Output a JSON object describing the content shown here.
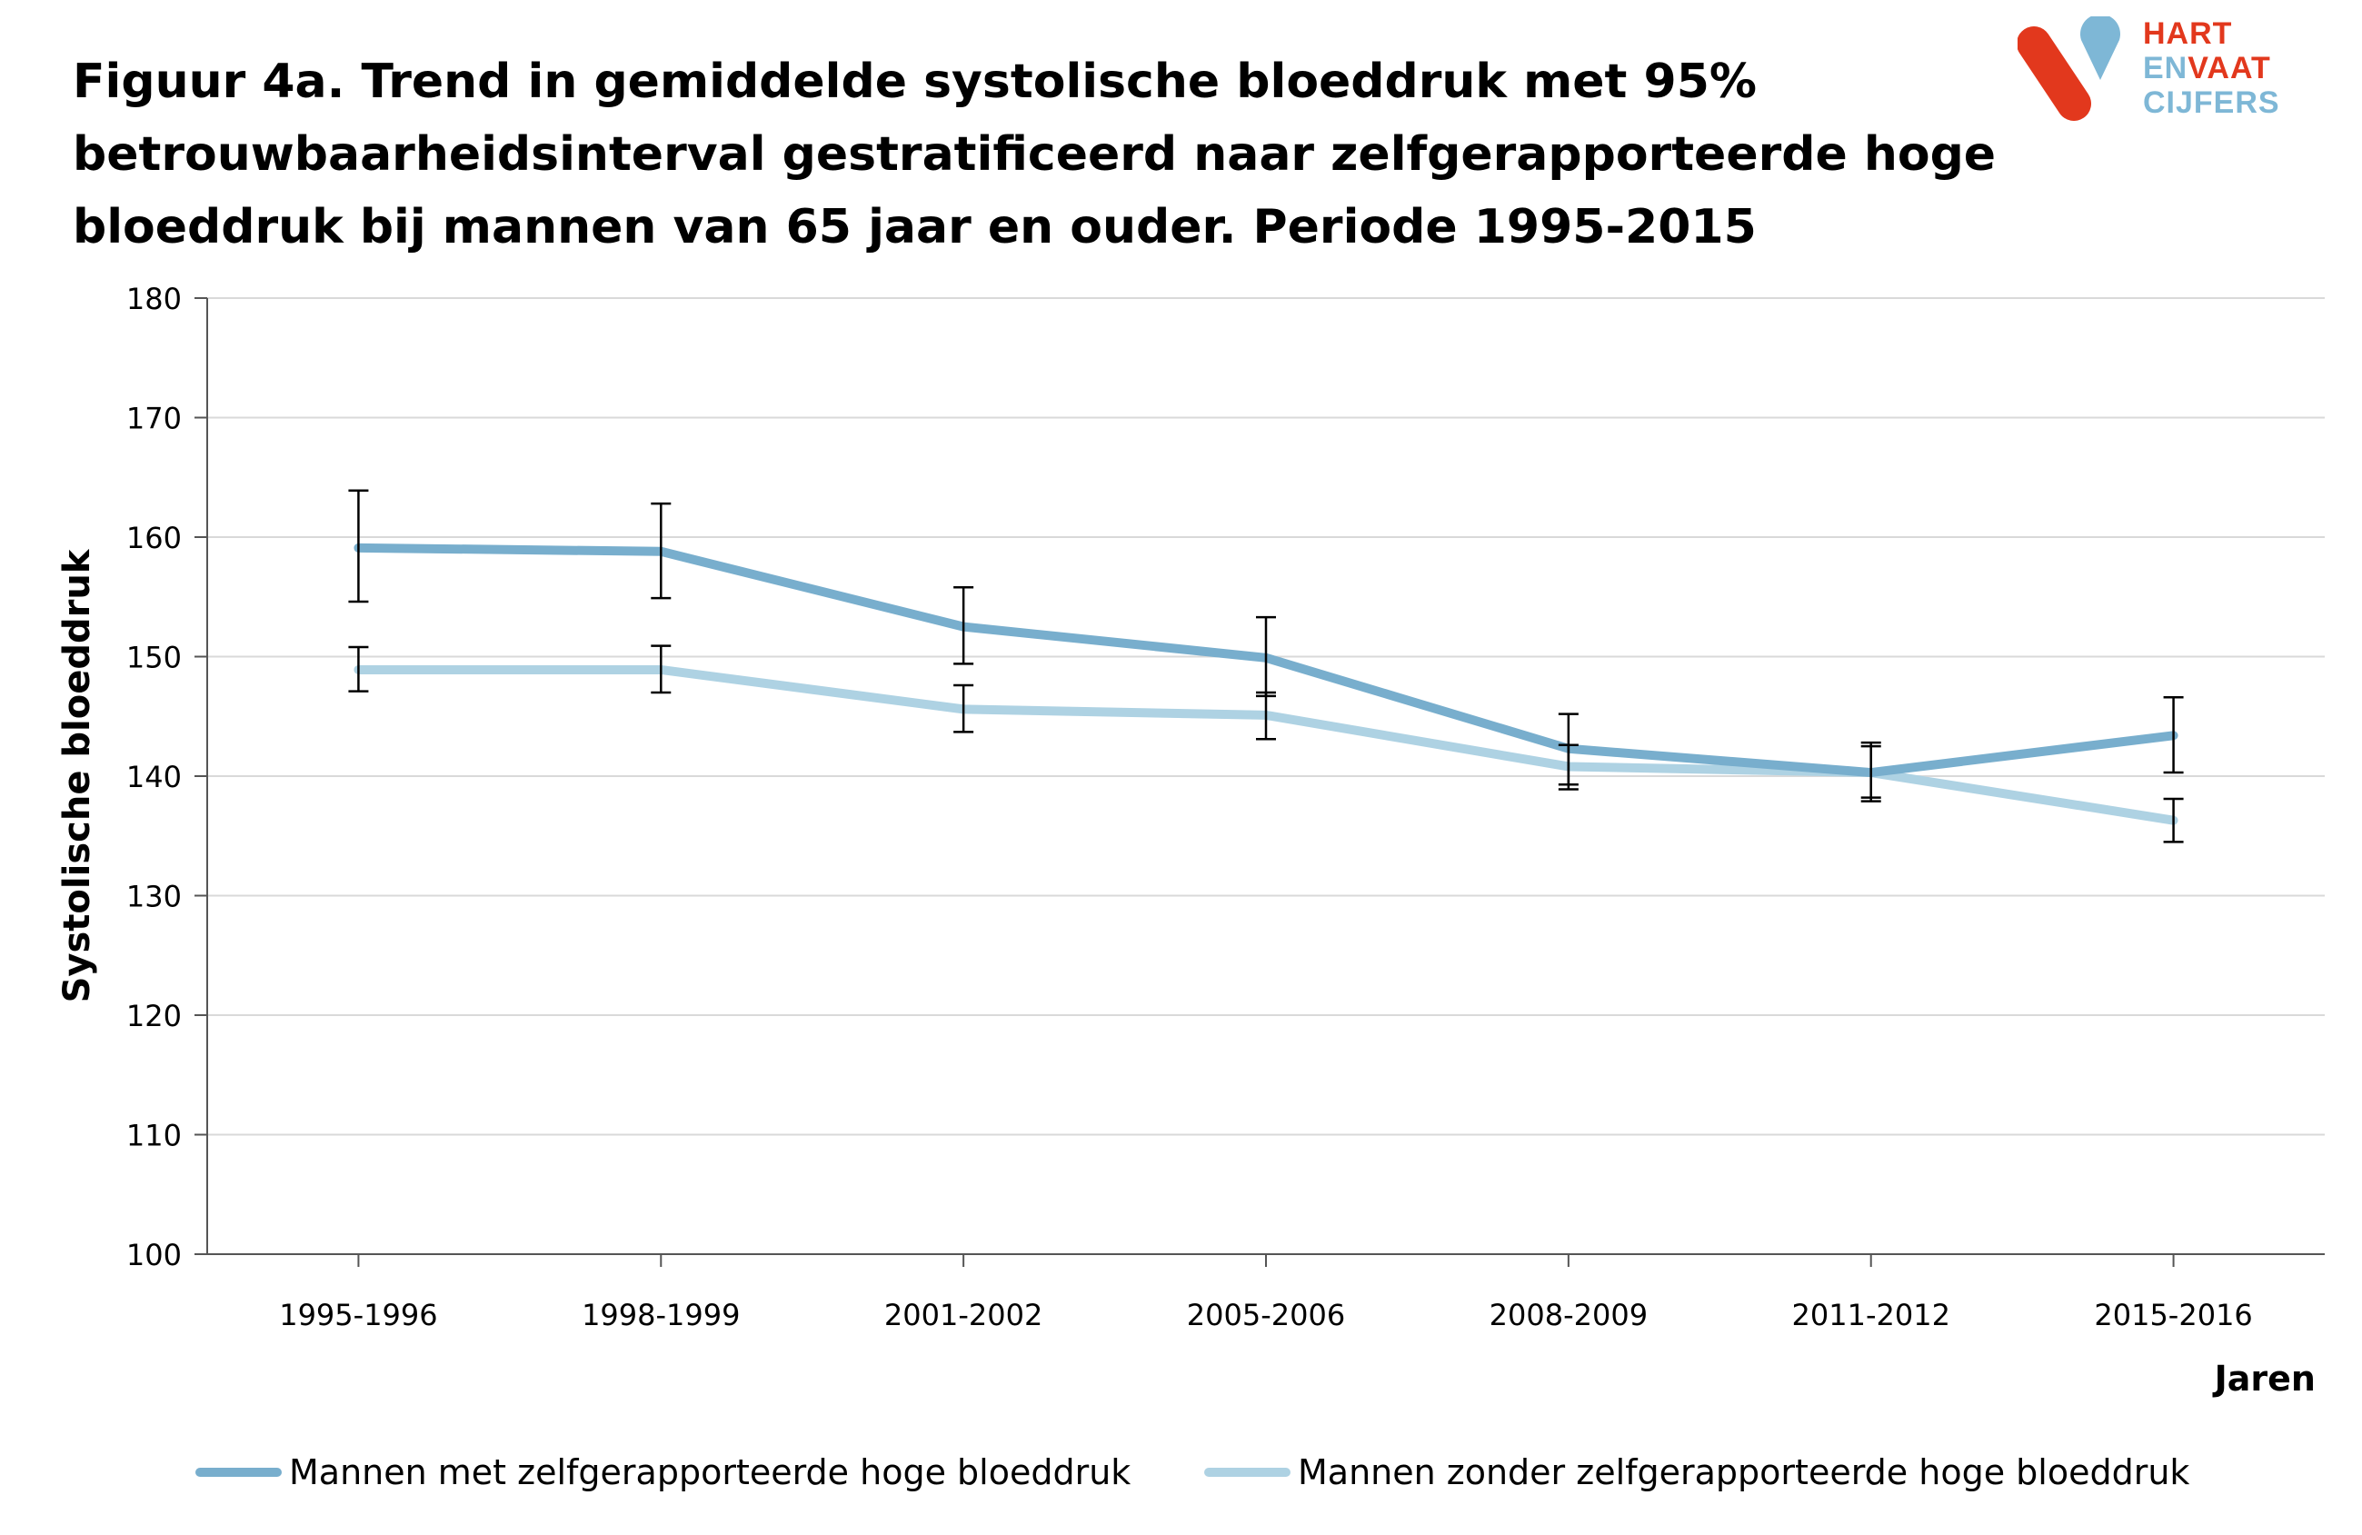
{
  "title_lines": [
    "Figuur 4a. Trend in gemiddelde systolische bloeddruk met 95%",
    "betrouwbaarheidsinterval gestratificeerd naar zelfgerapporteerde hoge",
    "bloeddruk bij mannen van 65 jaar en ouder. Periode 1995-2015"
  ],
  "logo": {
    "line1": "HART",
    "line2a": "EN",
    "line2b": "VAAT",
    "line3": "CIJFERS",
    "colors": {
      "red": "#e2381d",
      "blue": "#7eb7d6",
      "text_blue": "#7eb7d6"
    }
  },
  "chart_data": {
    "type": "line",
    "xlabel": "Jaren",
    "ylabel": "Systolische bloeddruk",
    "ylim": [
      100,
      180
    ],
    "yticks": [
      "100",
      "110",
      "120",
      "130",
      "140",
      "150",
      "160",
      "170",
      "180"
    ],
    "categories": [
      "1995-1996",
      "1998-1999",
      "2001-2002",
      "2005-2006",
      "2008-2009",
      "2011-2012",
      "2015-2016"
    ],
    "grid": true,
    "legend_position": "bottom",
    "series": [
      {
        "name": "Mannen met zelfgerapporteerde hoge bloeddruk",
        "color": "#78aecd",
        "values": [
          159.1,
          158.8,
          152.5,
          149.9,
          142.3,
          140.3,
          143.4
        ],
        "ci_low": [
          154.6,
          154.9,
          149.4,
          146.7,
          139.3,
          137.9,
          140.3
        ],
        "ci_high": [
          163.9,
          162.8,
          155.8,
          153.3,
          145.2,
          142.8,
          146.6
        ]
      },
      {
        "name": "Mannen zonder zelfgerapporteerde hoge bloeddruk",
        "color": "#aed2e3",
        "values": [
          148.9,
          148.9,
          145.6,
          145.1,
          140.8,
          140.3,
          136.3
        ],
        "ci_low": [
          147.1,
          147.0,
          143.7,
          143.1,
          138.9,
          138.2,
          134.5
        ],
        "ci_high": [
          150.8,
          150.9,
          147.6,
          147.0,
          142.6,
          142.5,
          138.1
        ]
      }
    ]
  }
}
